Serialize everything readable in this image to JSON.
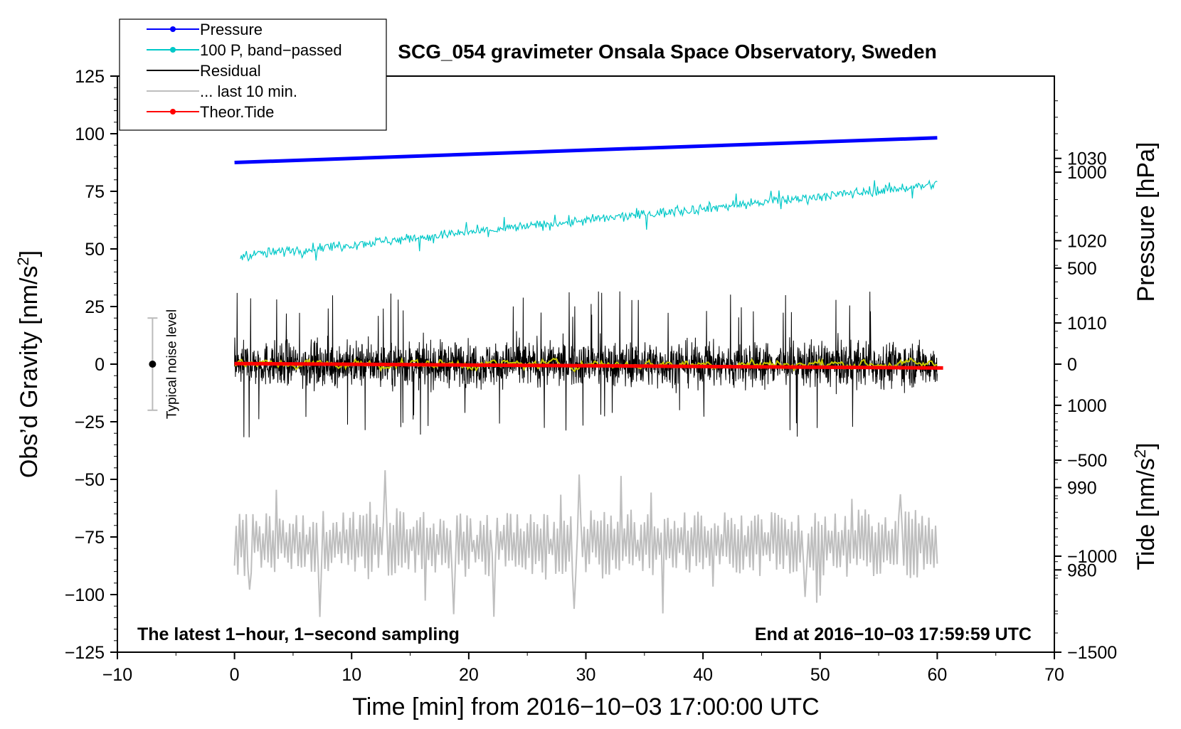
{
  "chart_data": {
    "type": "line",
    "title": "SCG_054 gravimeter Onsala Space Observatory, Sweden",
    "xlabel": "Time [min] from 2016−10−03 17:00:00 UTC",
    "ylabel_left": "Obs’d Gravity [nm/s",
    "ylabel_left_sup": "2",
    "ylabel_left_close": "]",
    "ylabel_right_pressure": "Pressure [hPa]",
    "ylabel_right_tide": "Tide [nm/s",
    "ylabel_right_tide_sup": "2",
    "ylabel_right_tide_close": "]",
    "xlim": [
      -10,
      70
    ],
    "ylim_left": [
      -125,
      125
    ],
    "pressure_axis_range": [
      970,
      1040
    ],
    "tide_axis_range": [
      -1500,
      1500
    ],
    "x_ticks": [
      -10,
      0,
      10,
      20,
      30,
      40,
      50,
      60,
      70
    ],
    "x_tick_labels": [
      "−10",
      "0",
      "10",
      "20",
      "30",
      "40",
      "50",
      "60",
      "70"
    ],
    "left_ticks": [
      125,
      100,
      75,
      50,
      25,
      0,
      -25,
      -50,
      -75,
      -100,
      -125
    ],
    "left_tick_labels": [
      "125",
      "100",
      "75",
      "50",
      "25",
      "0",
      "−25",
      "−50",
      "−75",
      "−100",
      "−125"
    ],
    "pressure_ticks": [
      1030,
      1020,
      1010,
      1000,
      990,
      980
    ],
    "pressure_tick_labels": [
      "1030",
      "1020",
      "1010",
      "1000",
      "990",
      "980"
    ],
    "tide_ticks": [
      1000,
      500,
      0,
      -500,
      -1000,
      -1500
    ],
    "tide_tick_labels": [
      "1000",
      "500",
      "0",
      "−500",
      "−1000",
      "−1500"
    ],
    "legend": [
      {
        "label": "Pressure",
        "color": "#0000ff",
        "marker": true
      },
      {
        "label": "100 P, band−passed",
        "color": "#00c8c8",
        "marker": true
      },
      {
        "label": "Residual",
        "color": "#000000",
        "marker": false
      },
      {
        "label": "... last 10 min.",
        "color": "#bebebe",
        "marker": false
      },
      {
        "label": "Theor.Tide",
        "color": "#ff0000",
        "marker": true
      }
    ],
    "legend_location": "top-left",
    "annotation_left": "The latest 1−hour, 1−second sampling",
    "annotation_right": "End at 2016−10−03 17:59:59 UTC",
    "noise_label": "Typical noise level",
    "noise_bar": {
      "x": -7,
      "center": 0,
      "half_range": 20
    },
    "series": [
      {
        "name": "Pressure",
        "axis": "pressure",
        "color": "#0000ff",
        "x_start": 0,
        "x_end": 60,
        "start": 1029.5,
        "end": 1032.5
      },
      {
        "name": "100 P, band-passed",
        "axis": "left",
        "color": "#00c8c8",
        "x_start": 0.5,
        "x_end": 60,
        "start": 47,
        "end": 78,
        "noise": 3
      },
      {
        "name": "Residual",
        "axis": "left",
        "color": "#000000",
        "x_start": 0,
        "x_end": 60,
        "center": 0,
        "typical_amplitude": 12,
        "peak_max": 38,
        "peak_min": -40
      },
      {
        "name": "Residual smoothed",
        "axis": "left",
        "color": "#c8c800",
        "x_start": 0,
        "x_end": 60,
        "center": 0,
        "amplitude": 2
      },
      {
        "name": "... last 10 min.",
        "axis": "left",
        "color": "#bebebe",
        "x_start": 0,
        "x_end": 60,
        "center": -78,
        "typical_amplitude": 10,
        "max": -42,
        "min": -113
      },
      {
        "name": "Theor.Tide",
        "axis": "tide",
        "color": "#ff0000",
        "x_start": 0,
        "x_end": 60.5,
        "start": 3,
        "end": -20
      }
    ]
  }
}
